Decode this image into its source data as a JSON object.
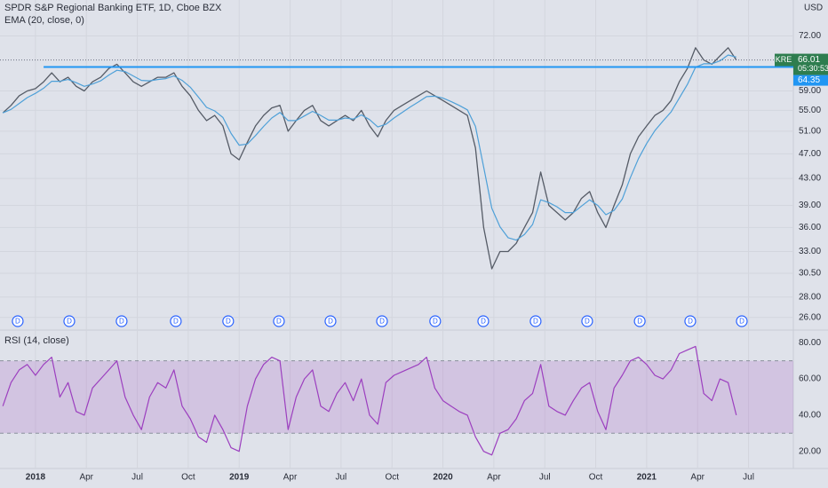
{
  "chart_data": {
    "type": "line",
    "title": "SPDR S&P Regional Banking ETF, 1D, Cboe BZX",
    "currency": "USD",
    "countdown": "05:30:53",
    "log_scale": true,
    "grid": true,
    "x": [
      2017.84,
      2017.88,
      2017.92,
      2017.96,
      2018.0,
      2018.04,
      2018.08,
      2018.12,
      2018.16,
      2018.2,
      2018.24,
      2018.28,
      2018.32,
      2018.36,
      2018.4,
      2018.44,
      2018.48,
      2018.52,
      2018.56,
      2018.6,
      2018.64,
      2018.68,
      2018.72,
      2018.76,
      2018.8,
      2018.84,
      2018.88,
      2018.92,
      2018.96,
      2019.0,
      2019.04,
      2019.08,
      2019.12,
      2019.16,
      2019.2,
      2019.24,
      2019.28,
      2019.32,
      2019.36,
      2019.4,
      2019.44,
      2019.48,
      2019.52,
      2019.56,
      2019.6,
      2019.64,
      2019.68,
      2019.72,
      2019.76,
      2019.8,
      2019.84,
      2019.88,
      2019.92,
      2019.96,
      2020.0,
      2020.04,
      2020.08,
      2020.12,
      2020.16,
      2020.2,
      2020.24,
      2020.28,
      2020.32,
      2020.36,
      2020.4,
      2020.44,
      2020.48,
      2020.52,
      2020.56,
      2020.6,
      2020.64,
      2020.68,
      2020.72,
      2020.76,
      2020.8,
      2020.84,
      2020.88,
      2020.92,
      2020.96,
      2021.0,
      2021.04,
      2021.08,
      2021.12,
      2021.16,
      2021.2,
      2021.24,
      2021.28,
      2021.32,
      2021.36,
      2021.4,
      2021.44
    ],
    "series": [
      {
        "name": "KRE",
        "color": "#555b66",
        "values": [
          54.5,
          56,
          58,
          59,
          59.5,
          61,
          63,
          61,
          62,
          60,
          59,
          61,
          62,
          64,
          65,
          63,
          61,
          60,
          61,
          62,
          62,
          63,
          60,
          58,
          55,
          53,
          54,
          52,
          47,
          46,
          49,
          52,
          54,
          55.5,
          56,
          51,
          53,
          55,
          56,
          53,
          52,
          53,
          54,
          53,
          55,
          52,
          50,
          53,
          55,
          56,
          57,
          58,
          59,
          58,
          57,
          56,
          55,
          54,
          48,
          36,
          31,
          33,
          33,
          34,
          36,
          38,
          44,
          39,
          38,
          37,
          38,
          40,
          41,
          38,
          36,
          39,
          42,
          47,
          50,
          52,
          54,
          55,
          57,
          61,
          64,
          69,
          66,
          65,
          67,
          69,
          66.01
        ]
      },
      {
        "name": "EMA (20, close, 0)",
        "color": "#4ea0d8",
        "values": [
          54.5,
          55.2,
          56.4,
          57.6,
          58.5,
          59.6,
          61.1,
          61.1,
          61.5,
          60.8,
          60.0,
          60.5,
          61.2,
          62.5,
          63.6,
          63.3,
          62.3,
          61.3,
          61.2,
          61.5,
          61.7,
          62.3,
          61.3,
          59.8,
          57.7,
          55.6,
          54.9,
          53.6,
          50.6,
          48.5,
          48.7,
          50.2,
          51.9,
          53.5,
          54.6,
          53.0,
          53.0,
          53.9,
          54.8,
          54.0,
          53.1,
          53.1,
          53.5,
          53.3,
          54.1,
          53.2,
          51.8,
          52.3,
          53.5,
          54.6,
          55.7,
          56.7,
          57.8,
          57.9,
          57.5,
          56.8,
          56.0,
          55.1,
          51.9,
          44.8,
          38.6,
          36.1,
          34.7,
          34.4,
          35.1,
          36.4,
          39.8,
          39.4,
          38.8,
          38.0,
          38.0,
          38.9,
          39.8,
          39.0,
          37.7,
          38.3,
          39.9,
          43.1,
          46.2,
          48.8,
          51.1,
          52.9,
          54.7,
          57.5,
          60.4,
          64.3,
          65.1,
          65.1,
          65.8,
          67.2,
          66.7
        ]
      },
      {
        "name": "RSI (14, close)",
        "color": "#9c3fbf",
        "axis": "y2",
        "values": [
          45,
          58,
          65,
          68,
          62,
          68,
          72,
          50,
          58,
          42,
          40,
          55,
          60,
          65,
          70,
          50,
          40,
          32,
          50,
          58,
          55,
          65,
          45,
          38,
          28,
          25,
          40,
          32,
          22,
          20,
          45,
          60,
          68,
          72,
          70,
          32,
          50,
          60,
          65,
          45,
          42,
          52,
          58,
          48,
          60,
          40,
          35,
          58,
          62,
          64,
          66,
          68,
          72,
          55,
          48,
          45,
          42,
          40,
          28,
          20,
          18,
          30,
          32,
          38,
          48,
          52,
          68,
          45,
          42,
          40,
          48,
          55,
          58,
          42,
          32,
          55,
          62,
          70,
          72,
          68,
          62,
          60,
          65,
          74,
          76,
          78,
          52,
          48,
          60,
          58,
          40
        ]
      }
    ],
    "hline": {
      "value": 64.35,
      "start": 2018.04,
      "color": "#2196f3"
    },
    "rsi_band": [
      30,
      70
    ],
    "dividends": {
      "label": "D",
      "x": [
        2017.913,
        2018.166,
        2018.423,
        2018.689,
        2018.946,
        2019.195,
        2019.448,
        2019.701,
        2019.962,
        2020.198,
        2020.455,
        2020.708,
        2020.966,
        2021.214,
        2021.467
      ]
    },
    "xlim": [
      2017.826,
      2021.72
    ],
    "xticks": [
      {
        "value": 2018,
        "label": "2018"
      },
      {
        "value": 2018.25,
        "label": "Apr"
      },
      {
        "value": 2018.5,
        "label": "Jul"
      },
      {
        "value": 2018.75,
        "label": "Oct"
      },
      {
        "value": 2019,
        "label": "2019"
      },
      {
        "value": 2019.25,
        "label": "Apr"
      },
      {
        "value": 2019.5,
        "label": "Jul"
      },
      {
        "value": 2019.75,
        "label": "Oct"
      },
      {
        "value": 2020,
        "label": "2020"
      },
      {
        "value": 2020.25,
        "label": "Apr"
      },
      {
        "value": 2020.5,
        "label": "Jul"
      },
      {
        "value": 2020.75,
        "label": "Oct"
      },
      {
        "value": 2021,
        "label": "2021"
      },
      {
        "value": 2021.25,
        "label": "Apr"
      },
      {
        "value": 2021.5,
        "label": "Jul"
      }
    ],
    "ylim": [
      25,
      82
    ],
    "yticks": [
      {
        "value": 72,
        "label": "72.00"
      },
      {
        "value": 59,
        "label": "59.00"
      },
      {
        "value": 55,
        "label": "55.00"
      },
      {
        "value": 51,
        "label": "51.00"
      },
      {
        "value": 47,
        "label": "47.00"
      },
      {
        "value": 43,
        "label": "43.00"
      },
      {
        "value": 39,
        "label": "39.00"
      },
      {
        "value": 36,
        "label": "36.00"
      },
      {
        "value": 33,
        "label": "33.00"
      },
      {
        "value": 30.5,
        "label": "30.50"
      },
      {
        "value": 28,
        "label": "28.00"
      },
      {
        "value": 26,
        "label": "26.00"
      }
    ],
    "y2lim": [
      12,
      87
    ],
    "y2ticks": [
      {
        "value": 80,
        "label": "80.00"
      },
      {
        "value": 60,
        "label": "60.00"
      },
      {
        "value": 40,
        "label": "40.00"
      },
      {
        "value": 20,
        "label": "20.00"
      }
    ]
  }
}
